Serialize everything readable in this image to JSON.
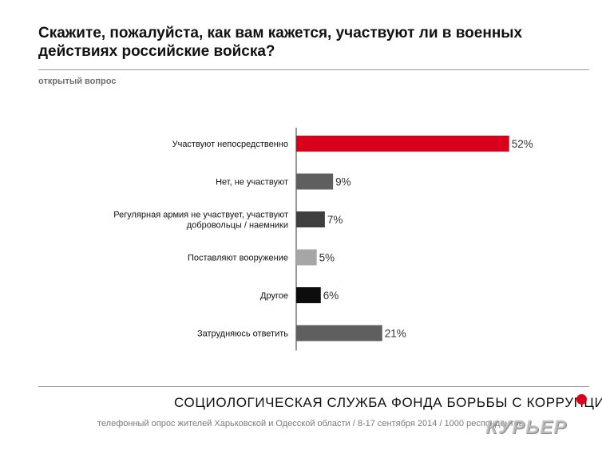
{
  "title": "Скажите, пожалуйста, как вам кажется, участвуют ли в военных действиях российские войска?",
  "subtitle": "открытый вопрос",
  "footer": {
    "organization": "СОЦИОЛОГИЧЕСКАЯ СЛУЖБА ФОНДА БОРЬБЫ С КОРРУПЦИЕЙ",
    "note": "телефонный опрос жителей Харьковской и Одесской области / 8-17 сентября 2014 / 1000 респондентов",
    "watermark": "КУРЬЕР",
    "accent_color": "#d9001b"
  },
  "chart_data": {
    "type": "bar",
    "orientation": "horizontal",
    "categories": [
      [
        "Участвуют непосредственно"
      ],
      [
        "Нет, не участвуют"
      ],
      [
        "Регулярная армия не участвует, участвуют",
        "добровольцы / наемники"
      ],
      [
        "Поставляют вооружение"
      ],
      [
        "Другое"
      ],
      [
        "Затрудняюсь ответить"
      ]
    ],
    "values": [
      52,
      9,
      7,
      5,
      6,
      21
    ],
    "value_labels": [
      "52%",
      "9%",
      "7%",
      "5%",
      "6%",
      "21%"
    ],
    "colors": [
      "#d9001b",
      "#5f5f5f",
      "#3f3f3f",
      "#a6a6a6",
      "#0d0d0d",
      "#5f5f5f"
    ],
    "xlim": [
      0,
      100
    ],
    "unit": "%",
    "grid": false,
    "legend": "none"
  }
}
